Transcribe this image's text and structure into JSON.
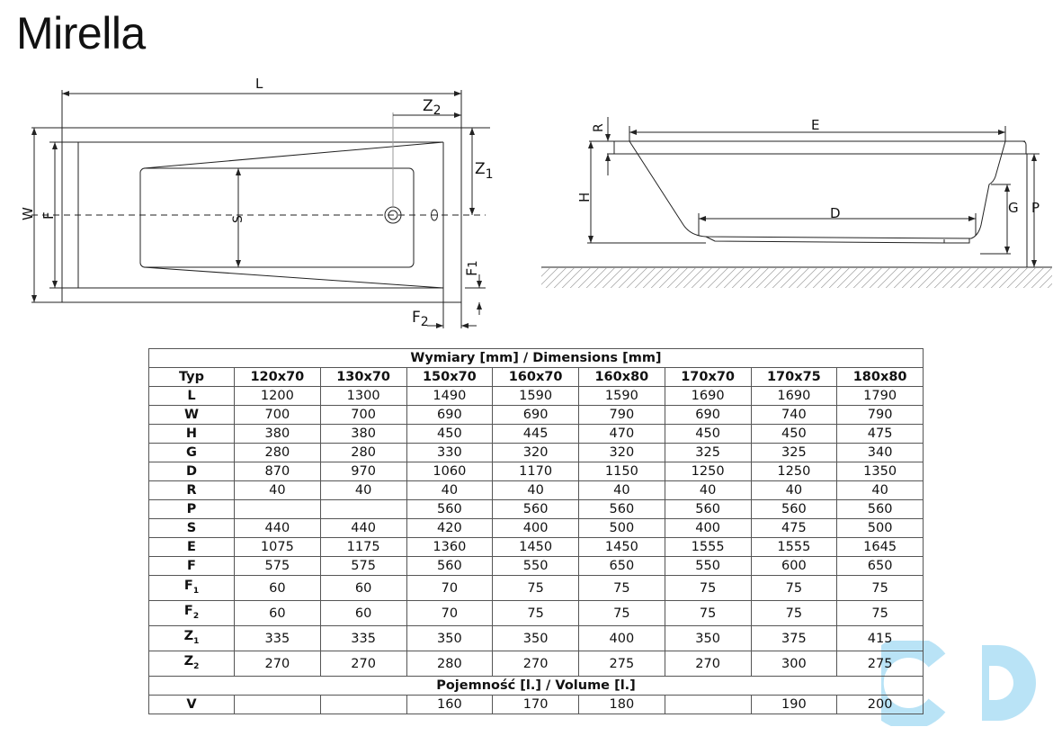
{
  "title": "Mirella",
  "top_view": {
    "labels": {
      "L": "L",
      "Z2": "Z",
      "Z2_sub": "2",
      "Z1": "Z",
      "Z1_sub": "1",
      "W": "W",
      "F": "F",
      "S": "S",
      "F1": "F",
      "F1_sub": "1",
      "F2": "F",
      "F2_sub": "2"
    }
  },
  "side_view": {
    "labels": {
      "R": "R",
      "E": "E",
      "H": "H",
      "D": "D",
      "G": "G",
      "P": "P"
    }
  },
  "table": {
    "dimensions_header": "Wymiary [mm] / Dimensions [mm]",
    "type_label": "Typ",
    "columns": [
      "120x70",
      "130x70",
      "150x70",
      "160x70",
      "160x80",
      "170x70",
      "170x75",
      "180x80"
    ],
    "rows": [
      {
        "label": "L",
        "sub": "",
        "values": [
          "1200",
          "1300",
          "1490",
          "1590",
          "1590",
          "1690",
          "1690",
          "1790"
        ]
      },
      {
        "label": "W",
        "sub": "",
        "values": [
          "700",
          "700",
          "690",
          "690",
          "790",
          "690",
          "740",
          "790"
        ]
      },
      {
        "label": "H",
        "sub": "",
        "values": [
          "380",
          "380",
          "450",
          "445",
          "470",
          "450",
          "450",
          "475"
        ]
      },
      {
        "label": "G",
        "sub": "",
        "values": [
          "280",
          "280",
          "330",
          "320",
          "320",
          "325",
          "325",
          "340"
        ]
      },
      {
        "label": "D",
        "sub": "",
        "values": [
          "870",
          "970",
          "1060",
          "1170",
          "1150",
          "1250",
          "1250",
          "1350"
        ]
      },
      {
        "label": "R",
        "sub": "",
        "values": [
          "40",
          "40",
          "40",
          "40",
          "40",
          "40",
          "40",
          "40"
        ]
      },
      {
        "label": "P",
        "sub": "",
        "values": [
          "",
          "",
          "560",
          "560",
          "560",
          "560",
          "560",
          "560"
        ]
      },
      {
        "label": "S",
        "sub": "",
        "values": [
          "440",
          "440",
          "420",
          "400",
          "500",
          "400",
          "475",
          "500"
        ]
      },
      {
        "label": "E",
        "sub": "",
        "values": [
          "1075",
          "1175",
          "1360",
          "1450",
          "1450",
          "1555",
          "1555",
          "1645"
        ]
      },
      {
        "label": "F",
        "sub": "",
        "values": [
          "575",
          "575",
          "560",
          "550",
          "650",
          "550",
          "600",
          "650"
        ]
      },
      {
        "label": "F",
        "sub": "1",
        "values": [
          "60",
          "60",
          "70",
          "75",
          "75",
          "75",
          "75",
          "75"
        ]
      },
      {
        "label": "F",
        "sub": "2",
        "values": [
          "60",
          "60",
          "70",
          "75",
          "75",
          "75",
          "75",
          "75"
        ]
      },
      {
        "label": "Z",
        "sub": "1",
        "values": [
          "335",
          "335",
          "350",
          "350",
          "400",
          "350",
          "375",
          "415"
        ]
      },
      {
        "label": "Z",
        "sub": "2",
        "values": [
          "270",
          "270",
          "280",
          "270",
          "275",
          "270",
          "300",
          "275"
        ]
      }
    ],
    "volume_header": "Pojemność [l.] / Volume [l.]",
    "volume_row": {
      "label": "V",
      "values": [
        "",
        "",
        "160",
        "170",
        "180",
        "",
        "190",
        "200"
      ]
    }
  },
  "watermark": {
    "color": "#b9e3f6"
  }
}
